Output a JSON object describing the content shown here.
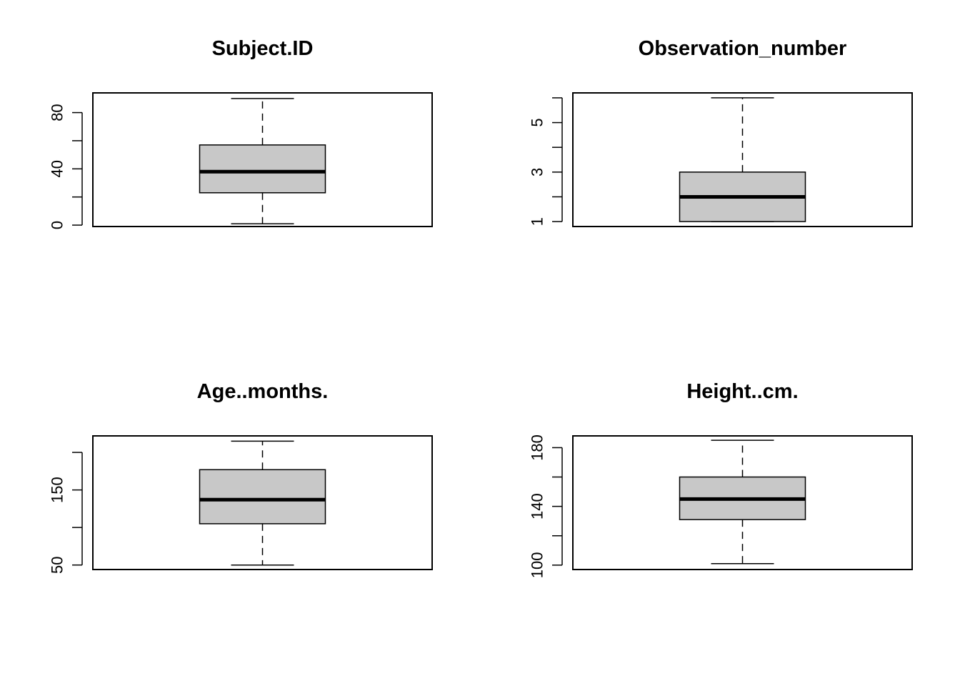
{
  "colors": {
    "box_fill": "#c8c8c8",
    "stroke": "#000000",
    "background": "#ffffff"
  },
  "chart_data": [
    {
      "type": "boxplot",
      "title": "Subject.ID",
      "ylim": [
        -1,
        94
      ],
      "ticks": [
        0,
        20,
        40,
        60,
        80
      ],
      "tick_labels": [
        "0",
        "",
        "40",
        "",
        "80"
      ],
      "stats": {
        "min": 1,
        "q1": 23,
        "median": 38,
        "q3": 57,
        "max": 90
      }
    },
    {
      "type": "boxplot",
      "title": "Observation_number",
      "ylim": [
        0.8,
        6.2
      ],
      "ticks": [
        1,
        2,
        3,
        4,
        5,
        6
      ],
      "tick_labels": [
        "1",
        "",
        "3",
        "",
        "5",
        ""
      ],
      "stats": {
        "min": 1,
        "q1": 1,
        "median": 2,
        "q3": 3,
        "max": 6
      }
    },
    {
      "type": "boxplot",
      "title": "Age..months.",
      "ylim": [
        44,
        222
      ],
      "ticks": [
        50,
        100,
        150,
        200
      ],
      "tick_labels": [
        "50",
        "",
        "150",
        ""
      ],
      "stats": {
        "min": 50,
        "q1": 105,
        "median": 137,
        "q3": 177,
        "max": 215
      }
    },
    {
      "type": "boxplot",
      "title": "Height..cm.",
      "ylim": [
        97,
        188
      ],
      "ticks": [
        100,
        120,
        140,
        160,
        180
      ],
      "tick_labels": [
        "100",
        "",
        "140",
        "",
        "180"
      ],
      "stats": {
        "min": 101,
        "q1": 131,
        "median": 145,
        "q3": 160,
        "max": 185
      }
    }
  ]
}
